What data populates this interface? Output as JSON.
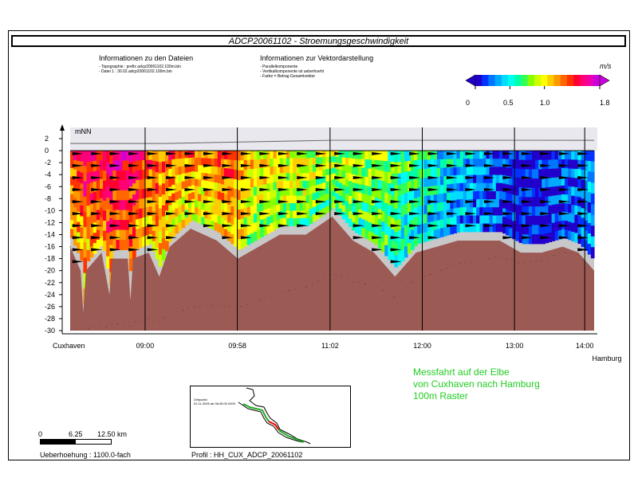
{
  "title": "ADCP20061102 - Stroemungsgeschwindigkeit",
  "info_files": {
    "heading": "Informationen zu den Dateien",
    "lines": [
      "- Topographie :      prefix adcp20061102.100m.bin",
      "- Datei 1 :          30.02.adcp20061102.100m.bin"
    ]
  },
  "info_vector": {
    "heading": "Informationen zur Vektordarstellung",
    "lines": [
      "- Parallelkomponente",
      "- Vertikalkomponente ist ueberhoeht",
      "- Farbe = Betrag Gesamtvektor"
    ]
  },
  "legend": {
    "unit": "m/s",
    "ticks": [
      "0",
      "0.5",
      "1.0",
      "1.8"
    ],
    "tick_values": [
      0,
      0.5,
      1.0,
      1.8
    ],
    "min": 0,
    "max": 1.8,
    "colors": [
      "#2200cc",
      "#0033ff",
      "#0077ff",
      "#00aaff",
      "#00ddff",
      "#00ffee",
      "#00ffaa",
      "#33ff55",
      "#88ff00",
      "#ccff00",
      "#ffff00",
      "#ffcc00",
      "#ff9900",
      "#ff6600",
      "#ff3300",
      "#ff0033",
      "#ff0077",
      "#ee00aa",
      "#cc00dd"
    ]
  },
  "chart_data": {
    "type": "heatmap",
    "ylabel": "mNN",
    "ylim": [
      -30,
      2
    ],
    "y_ticks": [
      2,
      0,
      -2,
      -4,
      -6,
      -8,
      -10,
      -12,
      -14,
      -16,
      -18,
      -20,
      -22,
      -24,
      -26,
      -28,
      -30
    ],
    "x_start_label": "Cuxhaven",
    "x_end_label": "Hamburg",
    "x_time_ticks": [
      "09:00",
      "09:58",
      "11:02",
      "12:00",
      "13:00",
      "14:00"
    ],
    "x_time_tick_fraction": [
      0.143,
      0.319,
      0.496,
      0.672,
      0.848,
      0.982
    ],
    "vector_depths": [
      -0.5,
      -2.5,
      -4.5,
      -6.5,
      -8.5,
      -10.5,
      -12.5,
      -14.5,
      -16.5,
      -18.5
    ],
    "bed_profile": [
      [
        0.0,
        -16
      ],
      [
        0.02,
        -20
      ],
      [
        0.025,
        -27
      ],
      [
        0.03,
        -20
      ],
      [
        0.06,
        -17
      ],
      [
        0.075,
        -24
      ],
      [
        0.08,
        -18
      ],
      [
        0.11,
        -18
      ],
      [
        0.115,
        -25
      ],
      [
        0.12,
        -18
      ],
      [
        0.15,
        -17
      ],
      [
        0.17,
        -21
      ],
      [
        0.19,
        -16
      ],
      [
        0.23,
        -13
      ],
      [
        0.28,
        -15
      ],
      [
        0.32,
        -18
      ],
      [
        0.36,
        -16
      ],
      [
        0.4,
        -14
      ],
      [
        0.45,
        -14
      ],
      [
        0.5,
        -11
      ],
      [
        0.54,
        -15
      ],
      [
        0.58,
        -17
      ],
      [
        0.62,
        -21
      ],
      [
        0.66,
        -17
      ],
      [
        0.7,
        -16
      ],
      [
        0.74,
        -15
      ],
      [
        0.78,
        -15
      ],
      [
        0.82,
        -15
      ],
      [
        0.86,
        -17
      ],
      [
        0.9,
        -17
      ],
      [
        0.94,
        -16
      ],
      [
        0.97,
        -17
      ],
      [
        1.0,
        -20
      ]
    ],
    "speed_profile": [
      [
        0.0,
        1.4
      ],
      [
        0.05,
        1.5
      ],
      [
        0.1,
        1.6
      ],
      [
        0.15,
        1.35
      ],
      [
        0.2,
        1.25
      ],
      [
        0.25,
        1.2
      ],
      [
        0.3,
        1.35
      ],
      [
        0.35,
        1.05
      ],
      [
        0.4,
        1.0
      ],
      [
        0.45,
        0.95
      ],
      [
        0.5,
        0.9
      ],
      [
        0.55,
        0.85
      ],
      [
        0.6,
        0.8
      ],
      [
        0.65,
        0.65
      ],
      [
        0.7,
        0.5
      ],
      [
        0.75,
        0.4
      ],
      [
        0.8,
        0.25
      ],
      [
        0.85,
        0.05
      ],
      [
        0.9,
        0.1
      ],
      [
        0.95,
        0.2
      ],
      [
        1.0,
        0.35
      ]
    ]
  },
  "message": [
    "Messfahrt auf der Elbe",
    "von Cuxhaven nach Hamburg",
    "100m Raster"
  ],
  "scale": {
    "labels": [
      "0",
      "6.25",
      "12.50 km"
    ]
  },
  "exaggeration": "Ueberhoehung :  1100.0-fach",
  "profile": "Profil :       HH_CUX_ADCP_20061102",
  "map": {
    "label_line1": "Zeitpunkt:",
    "label_line2": "02.11.2006 ab 08:45:00 0000"
  }
}
